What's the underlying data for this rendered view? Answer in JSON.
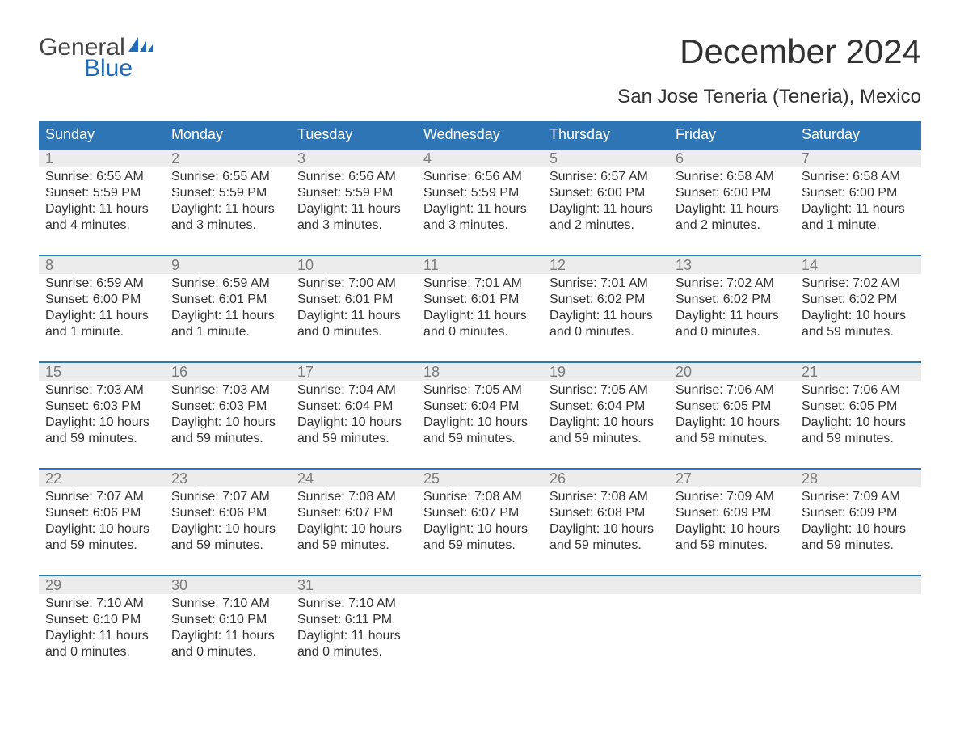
{
  "logo": {
    "top": "General",
    "bottom": "Blue"
  },
  "title": "December 2024",
  "subtitle": "San Jose Teneria (Teneria), Mexico",
  "colors": {
    "header_bg": "#2e75b6",
    "header_text": "#ffffff",
    "week_border": "#2e75b6",
    "daynum_bg": "#ececec",
    "daynum_text": "#7b7b7b",
    "body_text": "#333333",
    "logo_gray": "#444444",
    "logo_blue": "#1f6bb7",
    "background": "#ffffff"
  },
  "typography": {
    "title_fontsize": 42,
    "subtitle_fontsize": 24,
    "weekday_fontsize": 18,
    "daynum_fontsize": 18,
    "body_fontsize": 16,
    "logo_fontsize": 30
  },
  "weekdays": [
    "Sunday",
    "Monday",
    "Tuesday",
    "Wednesday",
    "Thursday",
    "Friday",
    "Saturday"
  ],
  "weeks": [
    [
      {
        "n": "1",
        "sunrise": "Sunrise: 6:55 AM",
        "sunset": "Sunset: 5:59 PM",
        "d1": "Daylight: 11 hours",
        "d2": "and 4 minutes."
      },
      {
        "n": "2",
        "sunrise": "Sunrise: 6:55 AM",
        "sunset": "Sunset: 5:59 PM",
        "d1": "Daylight: 11 hours",
        "d2": "and 3 minutes."
      },
      {
        "n": "3",
        "sunrise": "Sunrise: 6:56 AM",
        "sunset": "Sunset: 5:59 PM",
        "d1": "Daylight: 11 hours",
        "d2": "and 3 minutes."
      },
      {
        "n": "4",
        "sunrise": "Sunrise: 6:56 AM",
        "sunset": "Sunset: 5:59 PM",
        "d1": "Daylight: 11 hours",
        "d2": "and 3 minutes."
      },
      {
        "n": "5",
        "sunrise": "Sunrise: 6:57 AM",
        "sunset": "Sunset: 6:00 PM",
        "d1": "Daylight: 11 hours",
        "d2": "and 2 minutes."
      },
      {
        "n": "6",
        "sunrise": "Sunrise: 6:58 AM",
        "sunset": "Sunset: 6:00 PM",
        "d1": "Daylight: 11 hours",
        "d2": "and 2 minutes."
      },
      {
        "n": "7",
        "sunrise": "Sunrise: 6:58 AM",
        "sunset": "Sunset: 6:00 PM",
        "d1": "Daylight: 11 hours",
        "d2": "and 1 minute."
      }
    ],
    [
      {
        "n": "8",
        "sunrise": "Sunrise: 6:59 AM",
        "sunset": "Sunset: 6:00 PM",
        "d1": "Daylight: 11 hours",
        "d2": "and 1 minute."
      },
      {
        "n": "9",
        "sunrise": "Sunrise: 6:59 AM",
        "sunset": "Sunset: 6:01 PM",
        "d1": "Daylight: 11 hours",
        "d2": "and 1 minute."
      },
      {
        "n": "10",
        "sunrise": "Sunrise: 7:00 AM",
        "sunset": "Sunset: 6:01 PM",
        "d1": "Daylight: 11 hours",
        "d2": "and 0 minutes."
      },
      {
        "n": "11",
        "sunrise": "Sunrise: 7:01 AM",
        "sunset": "Sunset: 6:01 PM",
        "d1": "Daylight: 11 hours",
        "d2": "and 0 minutes."
      },
      {
        "n": "12",
        "sunrise": "Sunrise: 7:01 AM",
        "sunset": "Sunset: 6:02 PM",
        "d1": "Daylight: 11 hours",
        "d2": "and 0 minutes."
      },
      {
        "n": "13",
        "sunrise": "Sunrise: 7:02 AM",
        "sunset": "Sunset: 6:02 PM",
        "d1": "Daylight: 11 hours",
        "d2": "and 0 minutes."
      },
      {
        "n": "14",
        "sunrise": "Sunrise: 7:02 AM",
        "sunset": "Sunset: 6:02 PM",
        "d1": "Daylight: 10 hours",
        "d2": "and 59 minutes."
      }
    ],
    [
      {
        "n": "15",
        "sunrise": "Sunrise: 7:03 AM",
        "sunset": "Sunset: 6:03 PM",
        "d1": "Daylight: 10 hours",
        "d2": "and 59 minutes."
      },
      {
        "n": "16",
        "sunrise": "Sunrise: 7:03 AM",
        "sunset": "Sunset: 6:03 PM",
        "d1": "Daylight: 10 hours",
        "d2": "and 59 minutes."
      },
      {
        "n": "17",
        "sunrise": "Sunrise: 7:04 AM",
        "sunset": "Sunset: 6:04 PM",
        "d1": "Daylight: 10 hours",
        "d2": "and 59 minutes."
      },
      {
        "n": "18",
        "sunrise": "Sunrise: 7:05 AM",
        "sunset": "Sunset: 6:04 PM",
        "d1": "Daylight: 10 hours",
        "d2": "and 59 minutes."
      },
      {
        "n": "19",
        "sunrise": "Sunrise: 7:05 AM",
        "sunset": "Sunset: 6:04 PM",
        "d1": "Daylight: 10 hours",
        "d2": "and 59 minutes."
      },
      {
        "n": "20",
        "sunrise": "Sunrise: 7:06 AM",
        "sunset": "Sunset: 6:05 PM",
        "d1": "Daylight: 10 hours",
        "d2": "and 59 minutes."
      },
      {
        "n": "21",
        "sunrise": "Sunrise: 7:06 AM",
        "sunset": "Sunset: 6:05 PM",
        "d1": "Daylight: 10 hours",
        "d2": "and 59 minutes."
      }
    ],
    [
      {
        "n": "22",
        "sunrise": "Sunrise: 7:07 AM",
        "sunset": "Sunset: 6:06 PM",
        "d1": "Daylight: 10 hours",
        "d2": "and 59 minutes."
      },
      {
        "n": "23",
        "sunrise": "Sunrise: 7:07 AM",
        "sunset": "Sunset: 6:06 PM",
        "d1": "Daylight: 10 hours",
        "d2": "and 59 minutes."
      },
      {
        "n": "24",
        "sunrise": "Sunrise: 7:08 AM",
        "sunset": "Sunset: 6:07 PM",
        "d1": "Daylight: 10 hours",
        "d2": "and 59 minutes."
      },
      {
        "n": "25",
        "sunrise": "Sunrise: 7:08 AM",
        "sunset": "Sunset: 6:07 PM",
        "d1": "Daylight: 10 hours",
        "d2": "and 59 minutes."
      },
      {
        "n": "26",
        "sunrise": "Sunrise: 7:08 AM",
        "sunset": "Sunset: 6:08 PM",
        "d1": "Daylight: 10 hours",
        "d2": "and 59 minutes."
      },
      {
        "n": "27",
        "sunrise": "Sunrise: 7:09 AM",
        "sunset": "Sunset: 6:09 PM",
        "d1": "Daylight: 10 hours",
        "d2": "and 59 minutes."
      },
      {
        "n": "28",
        "sunrise": "Sunrise: 7:09 AM",
        "sunset": "Sunset: 6:09 PM",
        "d1": "Daylight: 10 hours",
        "d2": "and 59 minutes."
      }
    ],
    [
      {
        "n": "29",
        "sunrise": "Sunrise: 7:10 AM",
        "sunset": "Sunset: 6:10 PM",
        "d1": "Daylight: 11 hours",
        "d2": "and 0 minutes."
      },
      {
        "n": "30",
        "sunrise": "Sunrise: 7:10 AM",
        "sunset": "Sunset: 6:10 PM",
        "d1": "Daylight: 11 hours",
        "d2": "and 0 minutes."
      },
      {
        "n": "31",
        "sunrise": "Sunrise: 7:10 AM",
        "sunset": "Sunset: 6:11 PM",
        "d1": "Daylight: 11 hours",
        "d2": "and 0 minutes."
      },
      null,
      null,
      null,
      null
    ]
  ]
}
